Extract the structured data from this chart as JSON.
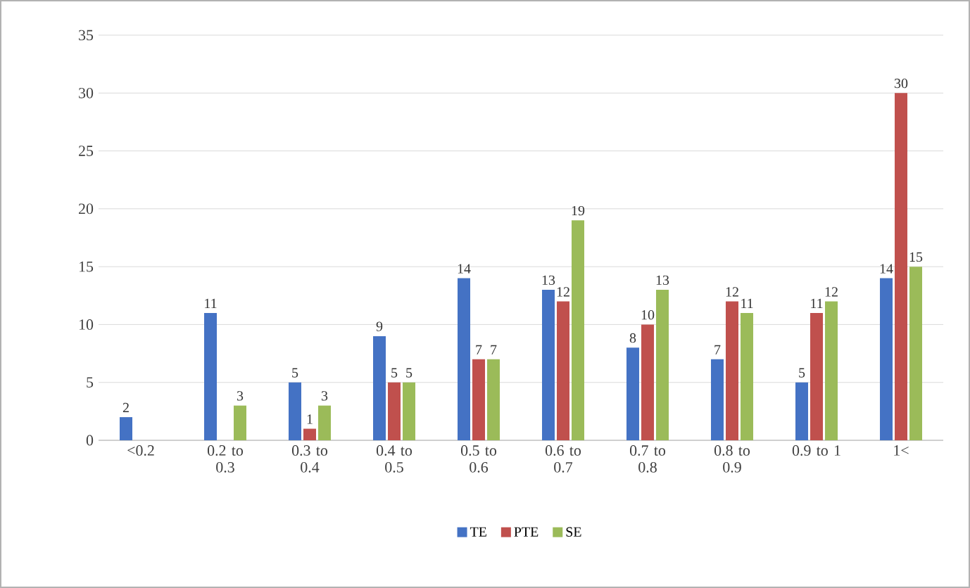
{
  "chart_data": {
    "type": "bar",
    "categories": [
      "<0.2",
      "0.2 to 0.3",
      "0.3 to 0.4",
      "0.4 to 0.5",
      "0.5 to 0.6",
      "0.6 to 0.7",
      "0.7 to 0.8",
      "0.8 to 0.9",
      "0.9 to 1",
      "1<"
    ],
    "series": [
      {
        "name": "TE",
        "color": "#4472c4",
        "values": [
          2,
          11,
          5,
          9,
          14,
          13,
          8,
          7,
          5,
          14
        ]
      },
      {
        "name": "PTE",
        "color": "#c0504d",
        "values": [
          null,
          null,
          1,
          5,
          7,
          12,
          10,
          12,
          11,
          30
        ]
      },
      {
        "name": "SE",
        "color": "#9bbb59",
        "values": [
          null,
          3,
          3,
          5,
          7,
          19,
          13,
          11,
          12,
          15
        ]
      }
    ],
    "ylim": [
      0,
      35
    ],
    "yticks": [
      0,
      5,
      10,
      15,
      20,
      25,
      30,
      35
    ],
    "grid": "y",
    "legend": "bottom",
    "data_labels": true
  }
}
